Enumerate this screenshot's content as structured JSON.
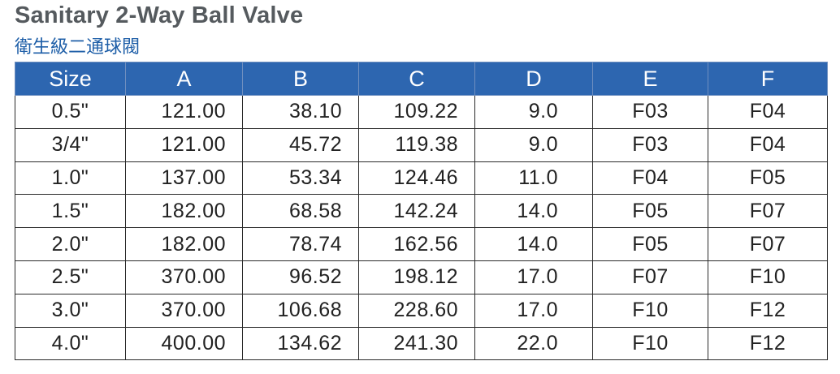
{
  "title": "Sanitary 2-Way Ball Valve",
  "subtitle": "衛生級二通球閥",
  "headers": [
    "Size",
    "A",
    "B",
    "C",
    "D",
    "E",
    "F"
  ],
  "rows": [
    [
      "0.5\"",
      "121.00",
      "38.10",
      "109.22",
      "9.0",
      "F03",
      "F04"
    ],
    [
      "3/4\"",
      "121.00",
      "45.72",
      "119.38",
      "9.0",
      "F03",
      "F04"
    ],
    [
      "1.0\"",
      "137.00",
      "53.34",
      "124.46",
      "11.0",
      "F04",
      "F05"
    ],
    [
      "1.5\"",
      "182.00",
      "68.58",
      "142.24",
      "14.0",
      "F05",
      "F07"
    ],
    [
      "2.0\"",
      "182.00",
      "78.74",
      "162.56",
      "14.0",
      "F05",
      "F07"
    ],
    [
      "2.5\"",
      "370.00",
      "96.52",
      "198.12",
      "17.0",
      "F07",
      "F10"
    ],
    [
      "3.0\"",
      "370.00",
      "106.68",
      "228.60",
      "17.0",
      "F10",
      "F12"
    ],
    [
      "4.0\"",
      "400.00",
      "134.62",
      "241.30",
      "22.0",
      "F10",
      "F12"
    ]
  ],
  "colors": {
    "header_bg": "#2d66b0",
    "header_text": "#ffffff",
    "title": "#555a5e",
    "subtitle": "#1f5fa8"
  }
}
